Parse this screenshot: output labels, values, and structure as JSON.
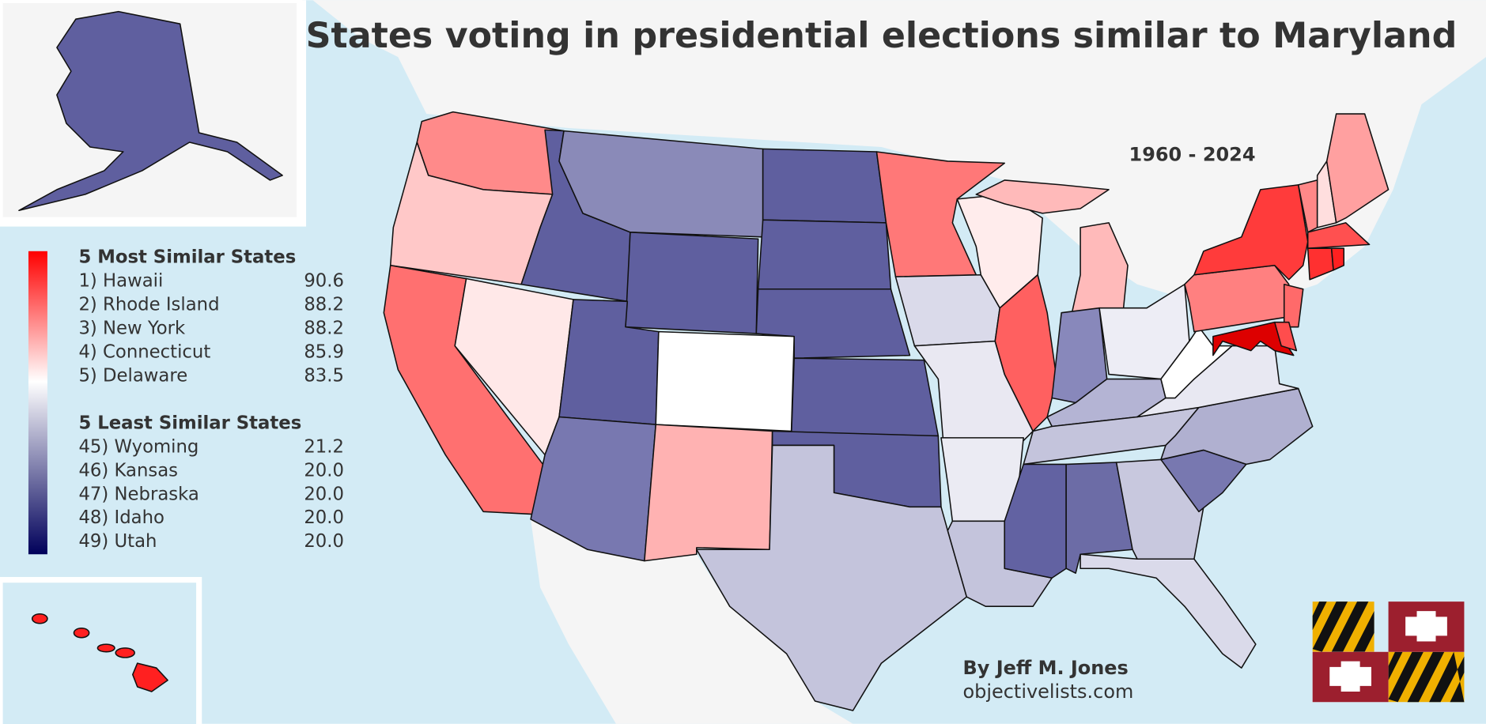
{
  "title": "States voting in presidential elections similar to Maryland",
  "period": "1960 - 2024",
  "legend": {
    "most_title": "5 Most Similar States",
    "most": [
      {
        "label": "1) Hawaii",
        "value": "90.6"
      },
      {
        "label": "2) Rhode Island",
        "value": "88.2"
      },
      {
        "label": "3) New York",
        "value": "88.2"
      },
      {
        "label": "4) Connecticut",
        "value": "85.9"
      },
      {
        "label": "5) Delaware",
        "value": "83.5"
      }
    ],
    "least_title": "5 Least Similar States",
    "least": [
      {
        "label": "45) Wyoming",
        "value": "21.2"
      },
      {
        "label": "46) Kansas",
        "value": "20.0"
      },
      {
        "label": "47) Nebraska",
        "value": "20.0"
      },
      {
        "label": "48) Idaho",
        "value": "20.0"
      },
      {
        "label": "49) Utah",
        "value": "20.0"
      }
    ]
  },
  "credit": {
    "author": "By Jeff M. Jones",
    "site": "objectivelists.com"
  }
}
